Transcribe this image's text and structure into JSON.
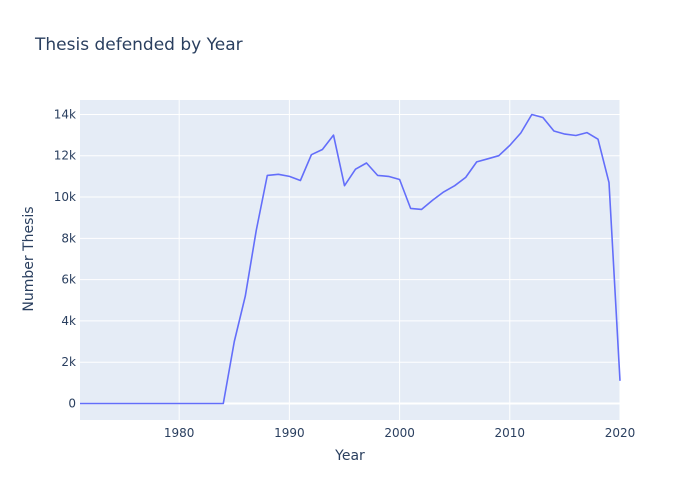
{
  "chart_data": {
    "type": "line",
    "title": "Thesis defended by Year",
    "xlabel": "Year",
    "ylabel": "Number Thesis",
    "xlim": [
      1971,
      2020
    ],
    "ylim": [
      -800,
      14700
    ],
    "x_ticks": [
      1980,
      1990,
      2000,
      2010,
      2020
    ],
    "x_tick_labels": [
      "1980",
      "1990",
      "2000",
      "2010",
      "2020"
    ],
    "y_ticks": [
      0,
      2000,
      4000,
      6000,
      8000,
      10000,
      12000,
      14000
    ],
    "y_tick_labels": [
      "0",
      "2k",
      "4k",
      "6k",
      "8k",
      "10k",
      "12k",
      "14k"
    ],
    "grid": true,
    "line_color": "#636efa",
    "plot_bg": "#e5ecf6",
    "grid_color": "#ffffff",
    "x": [
      1971,
      1972,
      1973,
      1974,
      1975,
      1976,
      1977,
      1978,
      1979,
      1980,
      1981,
      1982,
      1983,
      1984,
      1985,
      1986,
      1987,
      1988,
      1989,
      1990,
      1991,
      1992,
      1993,
      1994,
      1995,
      1996,
      1997,
      1998,
      1999,
      2000,
      2001,
      2002,
      2003,
      2004,
      2005,
      2006,
      2007,
      2008,
      2009,
      2010,
      2011,
      2012,
      2013,
      2014,
      2015,
      2016,
      2017,
      2018,
      2019,
      2020
    ],
    "y": [
      0,
      0,
      0,
      0,
      0,
      0,
      0,
      0,
      0,
      0,
      0,
      0,
      0,
      0,
      3000,
      5200,
      8400,
      11050,
      11100,
      11000,
      10800,
      12050,
      12300,
      13000,
      10550,
      11350,
      11650,
      11050,
      11000,
      10850,
      9450,
      9400,
      9850,
      10250,
      10550,
      10950,
      11700,
      11850,
      12000,
      12500,
      13100,
      14000,
      13850,
      13200,
      13050,
      12980,
      13120,
      12800,
      10700,
      1100
    ]
  }
}
